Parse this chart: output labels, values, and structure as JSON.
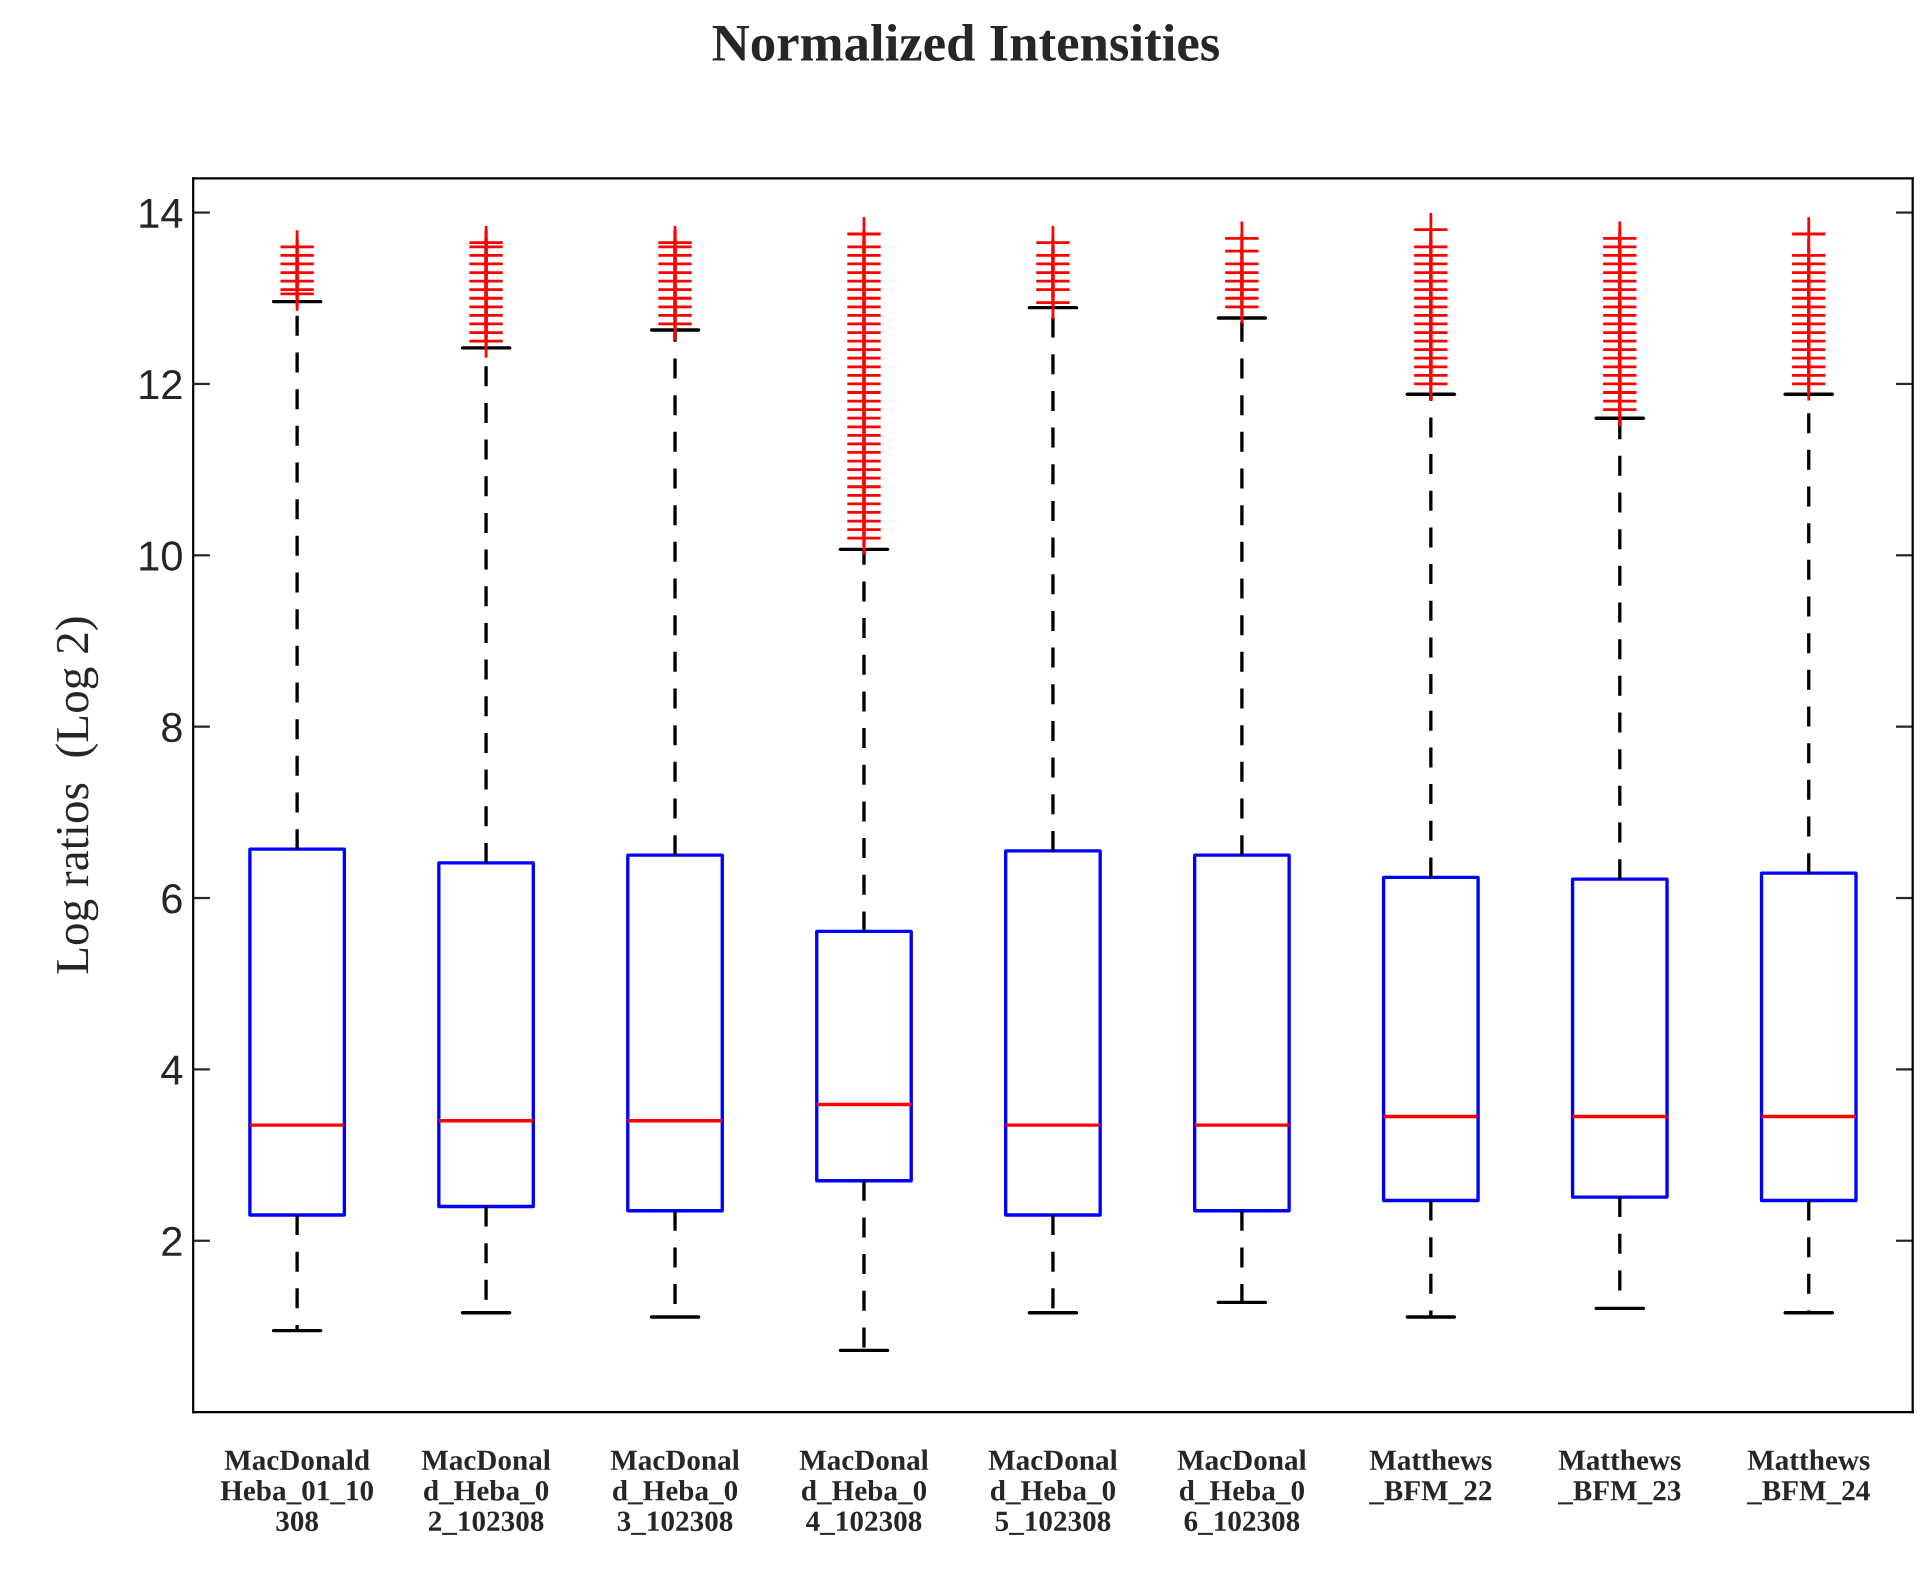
{
  "chart_data": {
    "type": "box",
    "title": "Normalized Intensities",
    "ylabel": "Log ratios  (Log 2)",
    "categories": [
      "MacDonald\nHeba_01_10\n308",
      "MacDonal\nd_Heba_0\n2_102308",
      "MacDonal\nd_Heba_0\n3_102308",
      "MacDonal\nd_Heba_0\n4_102308",
      "MacDonal\nd_Heba_0\n5_102308",
      "MacDonal\nd_Heba_0\n6_102308",
      "Matthews\n_BFM_22",
      "Matthews\n_BFM_23",
      "Matthews\n_BFM_24"
    ],
    "ylim": [
      0,
      14.4
    ],
    "yticks": [
      2,
      4,
      6,
      8,
      10,
      12,
      14
    ],
    "grid": false,
    "legend": false,
    "boxes": [
      {
        "low": 0.95,
        "q1": 2.3,
        "median": 3.35,
        "q3": 6.57,
        "high": 12.96,
        "outliers": [
          13.05,
          13.1,
          13.2,
          13.3,
          13.4,
          13.5,
          13.6
        ]
      },
      {
        "low": 1.16,
        "q1": 2.4,
        "median": 3.4,
        "q3": 6.41,
        "high": 12.42,
        "outliers": [
          12.5,
          12.6,
          12.7,
          12.8,
          12.9,
          13.0,
          13.1,
          13.2,
          13.3,
          13.4,
          13.5,
          13.6,
          13.65
        ]
      },
      {
        "low": 1.11,
        "q1": 2.35,
        "median": 3.4,
        "q3": 6.5,
        "high": 12.63,
        "outliers": [
          12.7,
          12.8,
          12.9,
          13.0,
          13.1,
          13.2,
          13.3,
          13.4,
          13.5,
          13.6,
          13.65
        ]
      },
      {
        "low": 0.72,
        "q1": 2.7,
        "median": 3.59,
        "q3": 5.61,
        "high": 10.07,
        "outliers": [
          10.2,
          10.3,
          10.4,
          10.5,
          10.6,
          10.7,
          10.8,
          10.9,
          11.0,
          11.1,
          11.2,
          11.3,
          11.4,
          11.5,
          11.6,
          11.7,
          11.8,
          11.9,
          12.0,
          12.1,
          12.2,
          12.3,
          12.4,
          12.5,
          12.6,
          12.7,
          12.8,
          12.9,
          13.0,
          13.1,
          13.2,
          13.3,
          13.4,
          13.5,
          13.6,
          13.75
        ]
      },
      {
        "low": 1.16,
        "q1": 2.3,
        "median": 3.35,
        "q3": 6.55,
        "high": 12.89,
        "outliers": [
          12.95,
          13.1,
          13.2,
          13.3,
          13.4,
          13.5,
          13.65
        ]
      },
      {
        "low": 1.28,
        "q1": 2.35,
        "median": 3.35,
        "q3": 6.5,
        "high": 12.77,
        "outliers": [
          12.9,
          13.0,
          13.1,
          13.2,
          13.3,
          13.4,
          13.55,
          13.7
        ]
      },
      {
        "low": 1.11,
        "q1": 2.47,
        "median": 3.45,
        "q3": 6.24,
        "high": 11.88,
        "outliers": [
          12.0,
          12.1,
          12.2,
          12.3,
          12.4,
          12.5,
          12.6,
          12.7,
          12.8,
          12.9,
          13.0,
          13.1,
          13.2,
          13.3,
          13.4,
          13.5,
          13.6,
          13.8
        ]
      },
      {
        "low": 1.21,
        "q1": 2.51,
        "median": 3.45,
        "q3": 6.22,
        "high": 11.6,
        "outliers": [
          11.7,
          11.8,
          11.9,
          12.0,
          12.1,
          12.2,
          12.3,
          12.4,
          12.5,
          12.6,
          12.7,
          12.8,
          12.9,
          13.0,
          13.1,
          13.2,
          13.3,
          13.4,
          13.5,
          13.6,
          13.7
        ]
      },
      {
        "low": 1.16,
        "q1": 2.47,
        "median": 3.45,
        "q3": 6.29,
        "high": 11.88,
        "outliers": [
          12.0,
          12.1,
          12.2,
          12.3,
          12.4,
          12.5,
          12.6,
          12.7,
          12.8,
          12.9,
          13.0,
          13.1,
          13.2,
          13.3,
          13.4,
          13.5,
          13.75
        ]
      }
    ]
  }
}
